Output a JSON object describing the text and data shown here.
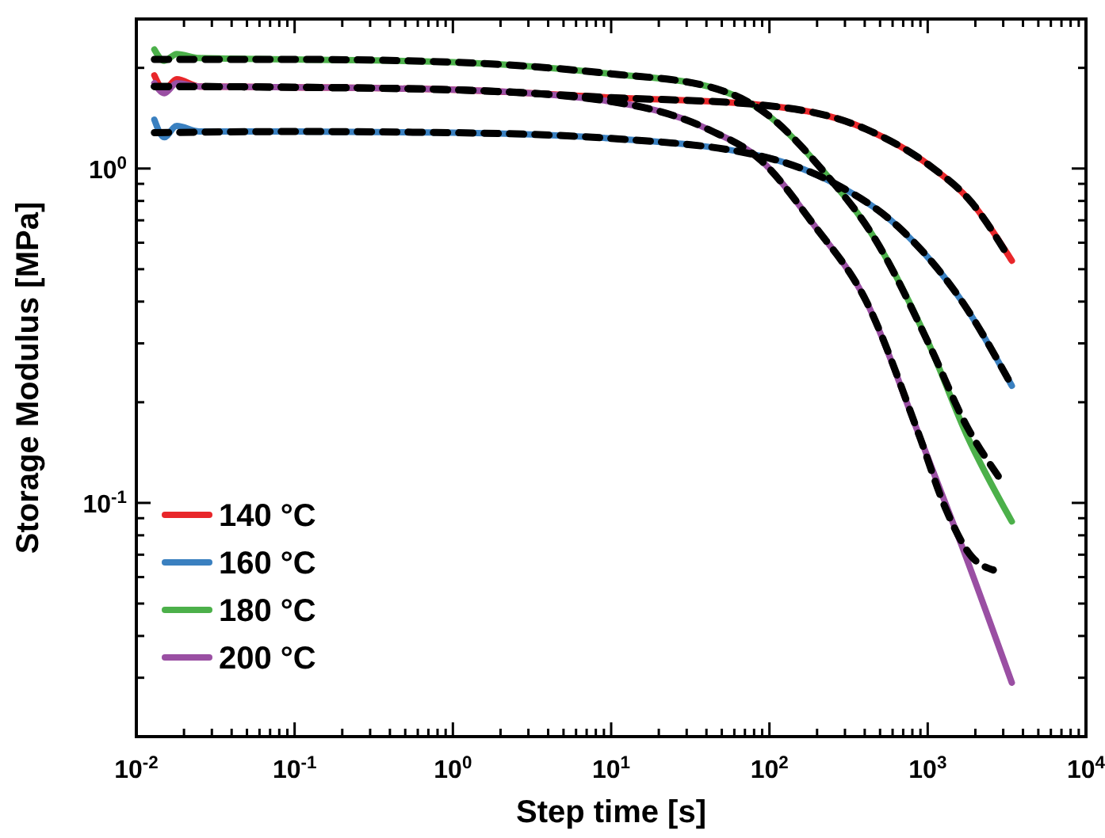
{
  "chart_data": {
    "type": "line",
    "xlabel": "Step time [s]",
    "ylabel": "Storage Modulus [MPa]",
    "log": "xy",
    "xlim": [
      0.01,
      10000
    ],
    "ylim": [
      0.02,
      2.8
    ],
    "xticks": [
      {
        "value": 0.01,
        "label": "10$^{-2}$"
      },
      {
        "value": 0.02,
        "label": null
      },
      {
        "value": 0.03,
        "label": null
      },
      {
        "value": 0.04,
        "label": null
      },
      {
        "value": 0.05,
        "label": null
      },
      {
        "value": 0.06,
        "label": null
      },
      {
        "value": 0.07,
        "label": null
      },
      {
        "value": 0.08,
        "label": null
      },
      {
        "value": 0.09,
        "label": null
      },
      {
        "value": 0.1,
        "label": "10$^{-1}$"
      },
      {
        "value": 0.2,
        "label": null
      },
      {
        "value": 0.3,
        "label": null
      },
      {
        "value": 0.4,
        "label": null
      },
      {
        "value": 0.5,
        "label": null
      },
      {
        "value": 0.6,
        "label": null
      },
      {
        "value": 0.7,
        "label": null
      },
      {
        "value": 0.8,
        "label": null
      },
      {
        "value": 0.9,
        "label": null
      },
      {
        "value": 1,
        "label": "10$^{0}$"
      },
      {
        "value": 2,
        "label": null
      },
      {
        "value": 3,
        "label": null
      },
      {
        "value": 4,
        "label": null
      },
      {
        "value": 5,
        "label": null
      },
      {
        "value": 6,
        "label": null
      },
      {
        "value": 7,
        "label": null
      },
      {
        "value": 8,
        "label": null
      },
      {
        "value": 9,
        "label": null
      },
      {
        "value": 10,
        "label": "10$^{1}$"
      },
      {
        "value": 20,
        "label": null
      },
      {
        "value": 30,
        "label": null
      },
      {
        "value": 40,
        "label": null
      },
      {
        "value": 50,
        "label": null
      },
      {
        "value": 60,
        "label": null
      },
      {
        "value": 70,
        "label": null
      },
      {
        "value": 80,
        "label": null
      },
      {
        "value": 90,
        "label": null
      },
      {
        "value": 100,
        "label": "10$^{2}$"
      },
      {
        "value": 200,
        "label": null
      },
      {
        "value": 300,
        "label": null
      },
      {
        "value": 400,
        "label": null
      },
      {
        "value": 500,
        "label": null
      },
      {
        "value": 600,
        "label": null
      },
      {
        "value": 700,
        "label": null
      },
      {
        "value": 800,
        "label": null
      },
      {
        "value": 900,
        "label": null
      },
      {
        "value": 1000,
        "label": "10$^{3}$"
      },
      {
        "value": 2000,
        "label": null
      },
      {
        "value": 3000,
        "label": null
      },
      {
        "value": 4000,
        "label": null
      },
      {
        "value": 5000,
        "label": null
      },
      {
        "value": 6000,
        "label": null
      },
      {
        "value": 7000,
        "label": null
      },
      {
        "value": 8000,
        "label": null
      },
      {
        "value": 9000,
        "label": null
      },
      {
        "value": 10000,
        "label": "10$^{4}$"
      }
    ],
    "yticks": [
      {
        "value": 0.02,
        "label": null
      },
      {
        "value": 0.03,
        "label": null
      },
      {
        "value": 0.04,
        "label": null
      },
      {
        "value": 0.05,
        "label": null
      },
      {
        "value": 0.06,
        "label": null
      },
      {
        "value": 0.07,
        "label": null
      },
      {
        "value": 0.08,
        "label": null
      },
      {
        "value": 0.09,
        "label": null
      },
      {
        "value": 0.1,
        "label": "10$^{-1}$"
      },
      {
        "value": 0.2,
        "label": null
      },
      {
        "value": 0.3,
        "label": null
      },
      {
        "value": 0.4,
        "label": null
      },
      {
        "value": 0.5,
        "label": null
      },
      {
        "value": 0.6,
        "label": null
      },
      {
        "value": 0.7,
        "label": null
      },
      {
        "value": 0.8,
        "label": null
      },
      {
        "value": 0.9,
        "label": null
      },
      {
        "value": 1,
        "label": "10$^{0}$"
      },
      {
        "value": 2,
        "label": null
      }
    ],
    "legend": "bottom left",
    "grid": false,
    "series": [
      {
        "name": "140 °C",
        "color": "#e8262a",
        "line_style": "solid",
        "x": [
          0.013,
          0.015,
          0.018,
          0.025,
          0.1,
          1,
          10,
          88,
          410,
          1030,
          1900,
          3400
        ],
        "values": [
          1.9,
          1.72,
          1.85,
          1.76,
          1.75,
          1.72,
          1.63,
          1.55,
          1.31,
          1.02,
          0.79,
          0.53
        ]
      },
      {
        "name": "160 °C",
        "color": "#3a80c0",
        "line_style": "solid",
        "x": [
          0.013,
          0.015,
          0.018,
          0.025,
          0.1,
          1,
          10,
          88,
          260,
          650,
          1650,
          3400
        ],
        "values": [
          1.4,
          1.24,
          1.34,
          1.29,
          1.29,
          1.28,
          1.23,
          1.09,
          0.9,
          0.67,
          0.4,
          0.224
        ]
      },
      {
        "name": "180 °C",
        "color": "#4cb04a",
        "line_style": "solid",
        "x": [
          0.013,
          0.015,
          0.018,
          0.025,
          0.1,
          1,
          10,
          41,
          88,
          220,
          470,
          1030,
          1760,
          3400
        ],
        "values": [
          2.27,
          2.1,
          2.2,
          2.14,
          2.12,
          2.08,
          1.92,
          1.76,
          1.5,
          0.98,
          0.61,
          0.295,
          0.16,
          0.088
        ]
      },
      {
        "name": "200 °C",
        "color": "#9a4fa3",
        "line_style": "solid",
        "x": [
          0.013,
          0.015,
          0.018,
          0.025,
          0.1,
          1,
          8.8,
          41,
          88,
          190,
          410,
          880,
          1650,
          3400
        ],
        "values": [
          1.8,
          1.68,
          1.8,
          1.76,
          1.75,
          1.72,
          1.6,
          1.31,
          1.06,
          0.68,
          0.4,
          0.16,
          0.074,
          0.029
        ]
      },
      {
        "color": "#000000",
        "line_style": "dashed",
        "x": [
          0.013,
          0.1,
          1,
          10,
          88,
          410,
          1030,
          1900,
          3200
        ],
        "values": [
          1.76,
          1.75,
          1.72,
          1.63,
          1.55,
          1.31,
          1.02,
          0.79,
          0.55
        ]
      },
      {
        "color": "#000000",
        "line_style": "dashed",
        "x": [
          0.013,
          0.1,
          1,
          10,
          88,
          260,
          650,
          1650,
          3300
        ],
        "values": [
          1.28,
          1.29,
          1.28,
          1.23,
          1.09,
          0.9,
          0.67,
          0.4,
          0.23
        ]
      },
      {
        "color": "#000000",
        "line_style": "dashed",
        "x": [
          0.013,
          0.1,
          1,
          10,
          41,
          88,
          220,
          470,
          1030,
          1760,
          2800
        ],
        "values": [
          2.12,
          2.12,
          2.08,
          1.92,
          1.76,
          1.5,
          0.98,
          0.61,
          0.295,
          0.17,
          0.12
        ]
      },
      {
        "color": "#000000",
        "line_style": "dashed",
        "x": [
          0.013,
          0.1,
          1,
          8.8,
          41,
          88,
          190,
          410,
          880,
          1300,
          1900,
          2600
        ],
        "values": [
          1.76,
          1.75,
          1.72,
          1.6,
          1.31,
          1.06,
          0.68,
          0.4,
          0.16,
          0.096,
          0.069,
          0.063
        ]
      }
    ]
  }
}
